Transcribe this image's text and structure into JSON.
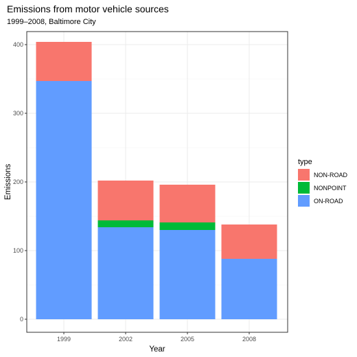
{
  "chart_data": {
    "type": "bar",
    "stacked": true,
    "title": "Emissions from motor vehicle sources",
    "subtitle": "1999–2008, Baltimore City",
    "xlabel": "Year",
    "ylabel": "Emissions",
    "categories": [
      "1999",
      "2002",
      "2005",
      "2008"
    ],
    "series": [
      {
        "name": "ON-ROAD",
        "color": "#619CFF",
        "values": [
          347,
          134,
          130,
          88
        ]
      },
      {
        "name": "NONPOINT",
        "color": "#00BA38",
        "values": [
          0,
          10,
          11,
          0
        ]
      },
      {
        "name": "NON-ROAD",
        "color": "#F8766D",
        "values": [
          57,
          58,
          55,
          50
        ]
      }
    ],
    "ylim": [
      0,
      420
    ],
    "yticks": [
      0,
      100,
      200,
      300,
      400
    ],
    "grid": true,
    "legend": {
      "title": "type",
      "position": "right",
      "entries": [
        {
          "label": "NON-ROAD",
          "color": "#F8766D"
        },
        {
          "label": "NONPOINT",
          "color": "#00BA38"
        },
        {
          "label": "ON-ROAD",
          "color": "#619CFF"
        }
      ]
    }
  }
}
